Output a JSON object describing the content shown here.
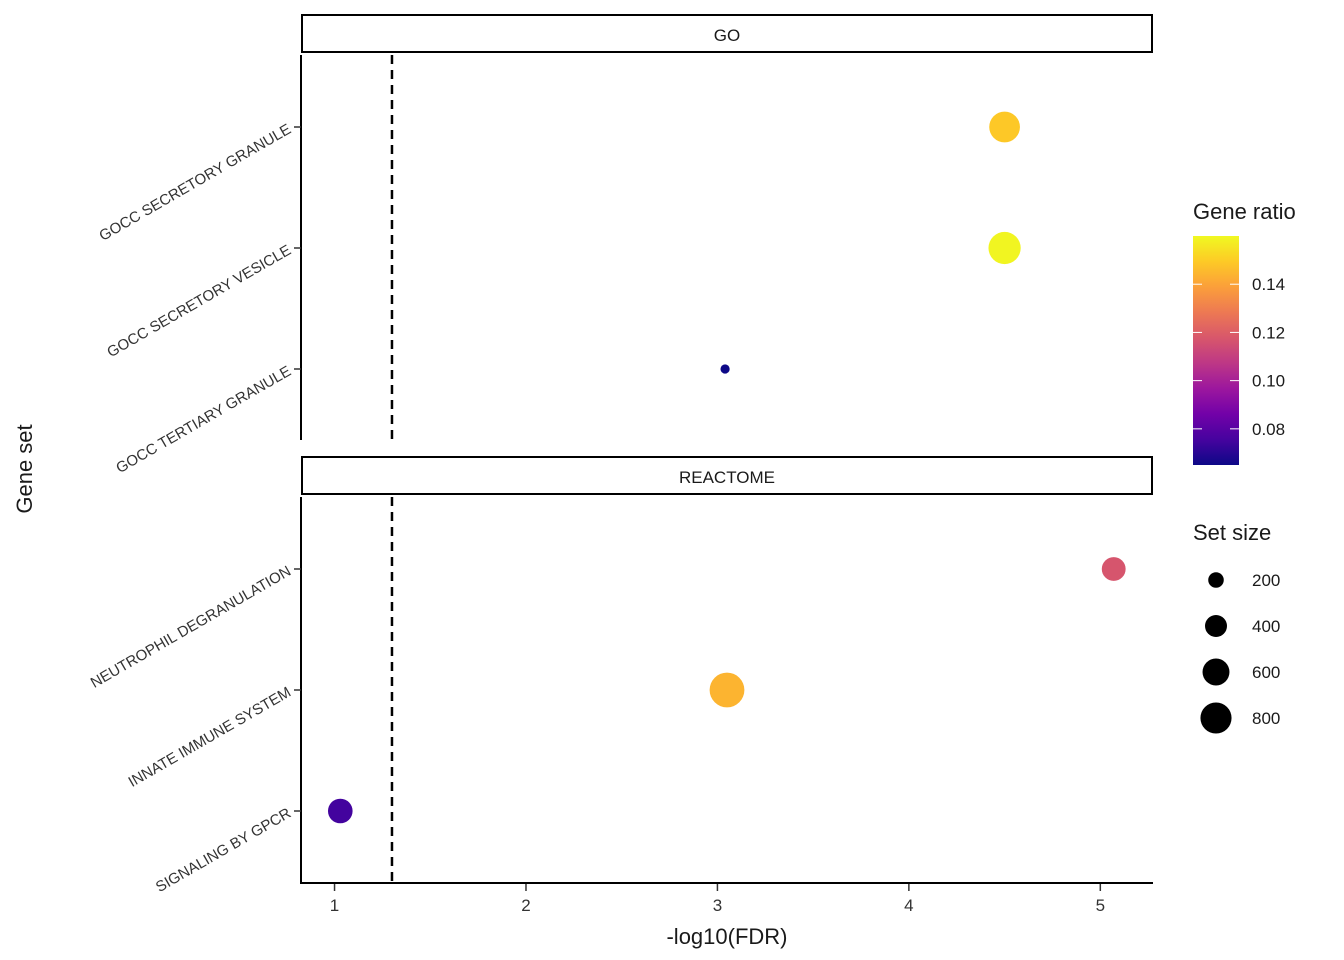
{
  "chart_data": {
    "type": "scatter",
    "subtype": "faceted dot plot",
    "xlabel": "-log10(FDR)",
    "ylabel": "Gene set",
    "xlim": [
      0.83,
      5.27
    ],
    "x_ticks": [
      1,
      2,
      3,
      4,
      5
    ],
    "threshold_line": 1.3,
    "facets": [
      {
        "name": "GO",
        "categories": [
          "GOCC SECRETORY GRANULE",
          "GOCC SECRETORY VESICLE",
          "GOCC TERTIARY GRANULE"
        ],
        "points": [
          {
            "term": "GOCC SECRETORY GRANULE",
            "x": 4.5,
            "gene_ratio": 0.149,
            "set_size": 780
          },
          {
            "term": "GOCC SECRETORY VESICLE",
            "x": 4.5,
            "gene_ratio": 0.159,
            "set_size": 860
          },
          {
            "term": "GOCC TERTIARY GRANULE",
            "x": 3.04,
            "gene_ratio": 0.065,
            "set_size": 70
          }
        ]
      },
      {
        "name": "REACTOME",
        "categories": [
          "NEUTROPHIL DEGRANULATION",
          "INNATE IMMUNE SYSTEM",
          "SIGNALING BY GPCR"
        ],
        "points": [
          {
            "term": "NEUTROPHIL DEGRANULATION",
            "x": 5.07,
            "gene_ratio": 0.117,
            "set_size": 470
          },
          {
            "term": "INNATE IMMUNE SYSTEM",
            "x": 3.05,
            "gene_ratio": 0.144,
            "set_size": 1000
          },
          {
            "term": "SIGNALING BY GPCR",
            "x": 1.03,
            "gene_ratio": 0.075,
            "set_size": 500
          }
        ]
      }
    ],
    "color_legend": {
      "title": "Gene ratio",
      "range": [
        0.065,
        0.16
      ],
      "breaks": [
        0.08,
        0.1,
        0.12,
        0.14
      ],
      "labels": [
        "0.08",
        "0.10",
        "0.12",
        "0.14"
      ],
      "palette": [
        "#0d0887",
        "#46039f",
        "#7201a8",
        "#9c179e",
        "#bd3786",
        "#d8576b",
        "#ed7953",
        "#fb9f3a",
        "#fdca26",
        "#f0f921"
      ]
    },
    "size_legend": {
      "title": "Set size",
      "breaks": [
        200,
        400,
        600,
        800
      ],
      "labels": [
        "200",
        "400",
        "600",
        "800"
      ]
    }
  }
}
